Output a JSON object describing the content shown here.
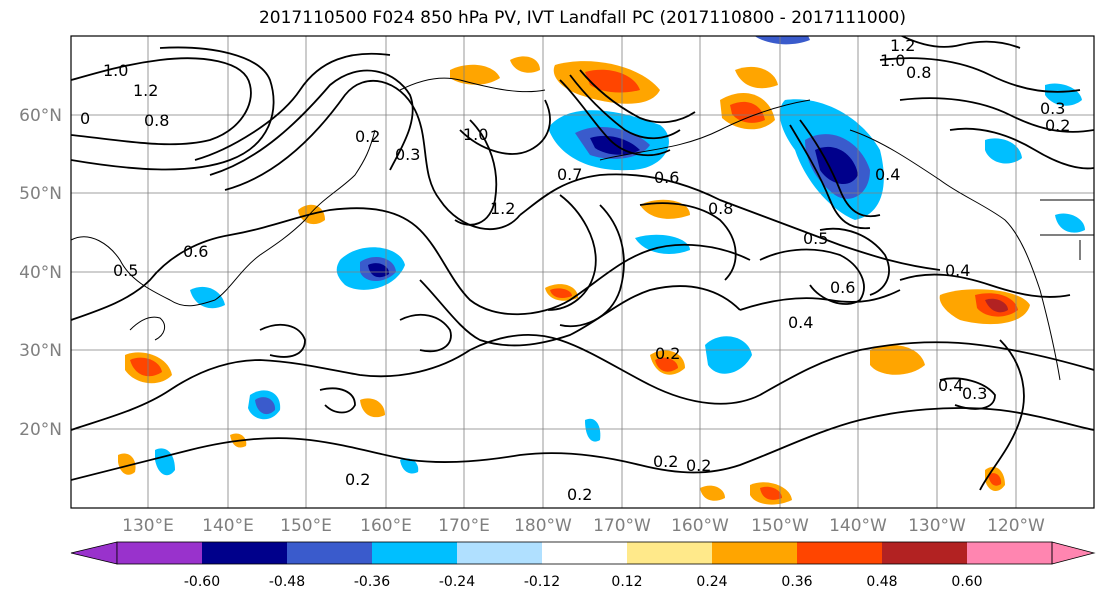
{
  "title": "2017110500 F024 850 hPa PV, IVT Landfall PC (2017110800 - 2017111000)",
  "map": {
    "lat_labels": [
      "60°N",
      "50°N",
      "40°N",
      "30°N",
      "20°N"
    ],
    "lon_labels": [
      "130°E",
      "140°E",
      "150°E",
      "160°E",
      "170°E",
      "180°W",
      "170°W",
      "160°W",
      "150°W",
      "140°W",
      "130°W",
      "120°W"
    ],
    "contour_labels": [
      "1.0",
      "1.2",
      "0",
      "0.8",
      "0.2",
      "0.3",
      "1.0",
      "0.7",
      "0.6",
      "1.2",
      "0.8",
      "0.5",
      "0.4",
      "0.6",
      "0.2",
      "0.6",
      "0.4",
      "0.2",
      "0.2",
      "0.2",
      "0.2",
      "0.4",
      "0.3",
      "0.4",
      "1.2",
      "1.0",
      "0.8",
      "0.2",
      "0.3",
      "0.5"
    ]
  },
  "colorbar": {
    "colors": [
      "#9932cc",
      "#00008b",
      "#3a5bcc",
      "#00bfff",
      "#b0e0ff",
      "#ffffff",
      "#ffe98a",
      "#ffa500",
      "#ff4500",
      "#b22222",
      "#ff85b0"
    ],
    "tick_labels": [
      "-0.60",
      "-0.48",
      "-0.36",
      "-0.24",
      "-0.12",
      "0.12",
      "0.24",
      "0.36",
      "0.48",
      "0.60"
    ]
  }
}
